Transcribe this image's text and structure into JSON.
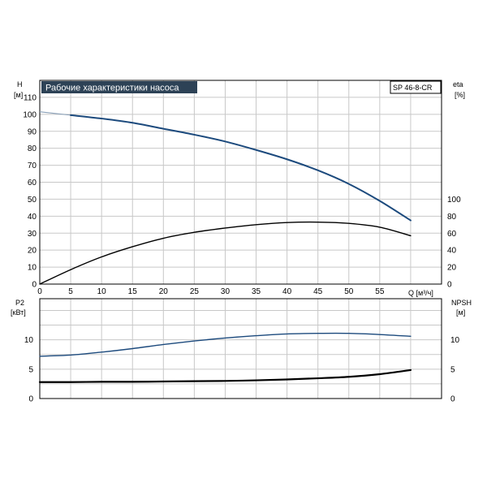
{
  "title_banner": "Рабочие характеристики насоса",
  "model_label": "SP 46-8-CR",
  "colors": {
    "banner_bg": "#2d4256",
    "banner_text": "#ffffff",
    "head_curve": "#1c4a7d",
    "power_curve": "#1c4a7d",
    "eff_curve": "#000000",
    "npsh_curve": "#000000",
    "grid": "#c8c8c8"
  },
  "chart_data": [
    {
      "id": "top",
      "type": "line",
      "x_axis": {
        "label": "Q [м³/ч]",
        "min": 0,
        "max": 65,
        "ticks": [
          0,
          5,
          10,
          15,
          20,
          25,
          30,
          35,
          40,
          45,
          50,
          55
        ]
      },
      "y_left": {
        "label_line1": "H",
        "label_line2": "[м]",
        "min": 0,
        "max": 120,
        "ticks": [
          0,
          10,
          20,
          30,
          40,
          50,
          60,
          70,
          80,
          90,
          100,
          110
        ]
      },
      "y_right": {
        "label_line1": "eta",
        "label_line2": "[%]",
        "min": 0,
        "max": 240,
        "ticks": [
          0,
          20,
          40,
          60,
          80,
          100
        ]
      },
      "series": [
        {
          "id": "head",
          "axis": "left",
          "style": "curve",
          "points": [
            [
              0,
              101.5
            ],
            [
              5,
              99.5
            ],
            [
              10,
              97.5
            ],
            [
              15,
              95
            ],
            [
              20,
              91.5
            ],
            [
              25,
              88
            ],
            [
              30,
              84
            ],
            [
              35,
              79
            ],
            [
              40,
              73.5
            ],
            [
              45,
              67
            ],
            [
              50,
              59
            ],
            [
              55,
              49
            ],
            [
              60,
              37.5
            ]
          ]
        },
        {
          "id": "efficiency",
          "axis": "right",
          "style": "curve",
          "points": [
            [
              0,
              0
            ],
            [
              5,
              17
            ],
            [
              10,
              32
            ],
            [
              15,
              44
            ],
            [
              20,
              54
            ],
            [
              25,
              61
            ],
            [
              30,
              66
            ],
            [
              35,
              70
            ],
            [
              40,
              72.5
            ],
            [
              45,
              73
            ],
            [
              50,
              71.5
            ],
            [
              55,
              67
            ],
            [
              60,
              57
            ]
          ]
        }
      ]
    },
    {
      "id": "bottom",
      "type": "line",
      "x_axis": {
        "min": 0,
        "max": 65
      },
      "y_left": {
        "label_line1": "P2",
        "label_line2": "[кВт]",
        "min": 0,
        "max": 17,
        "ticks": [
          0,
          5,
          10
        ]
      },
      "y_right": {
        "label_line1": "NPSH",
        "label_line2": "[м]",
        "min": 0,
        "max": 17,
        "ticks": [
          0,
          5,
          10
        ]
      },
      "series": [
        {
          "id": "power_p2",
          "axis": "left",
          "style": "curve",
          "points": [
            [
              0,
              7.2
            ],
            [
              5,
              7.4
            ],
            [
              10,
              7.9
            ],
            [
              15,
              8.5
            ],
            [
              20,
              9.2
            ],
            [
              25,
              9.8
            ],
            [
              30,
              10.3
            ],
            [
              35,
              10.7
            ],
            [
              40,
              11.0
            ],
            [
              45,
              11.1
            ],
            [
              50,
              11.1
            ],
            [
              55,
              10.9
            ],
            [
              60,
              10.6
            ]
          ]
        },
        {
          "id": "npsh",
          "axis": "right",
          "style": "bold",
          "points": [
            [
              0,
              2.8
            ],
            [
              5,
              2.8
            ],
            [
              10,
              2.85
            ],
            [
              15,
              2.85
            ],
            [
              20,
              2.9
            ],
            [
              25,
              2.95
            ],
            [
              30,
              3.0
            ],
            [
              35,
              3.1
            ],
            [
              40,
              3.25
            ],
            [
              45,
              3.45
            ],
            [
              50,
              3.7
            ],
            [
              55,
              4.15
            ],
            [
              60,
              4.85
            ]
          ]
        }
      ]
    }
  ]
}
